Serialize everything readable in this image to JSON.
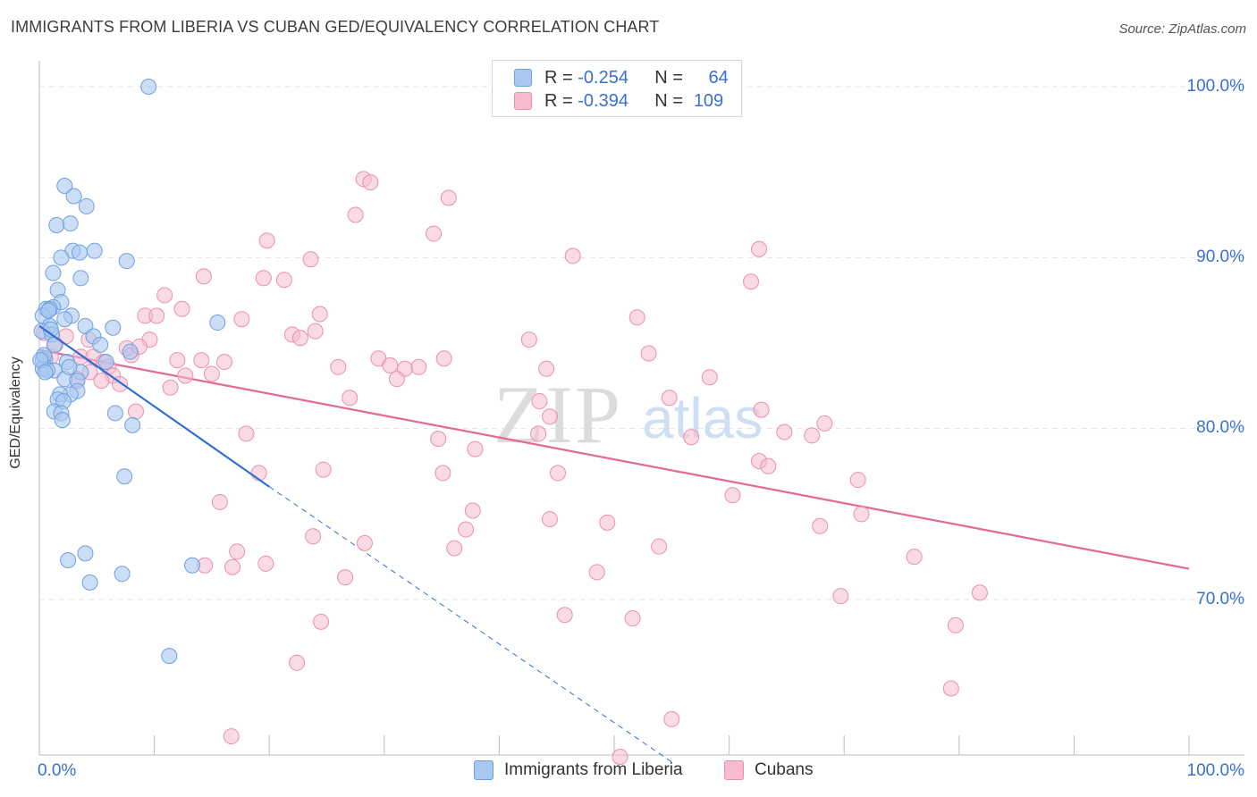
{
  "title": "IMMIGRANTS FROM LIBERIA VS CUBAN GED/EQUIVALENCY CORRELATION CHART",
  "source": "Source: ZipAtlas.com",
  "colors": {
    "blue_fill": "#a9c8f0",
    "blue_stroke": "#6f9fe0",
    "blue_line": "#2f6fd3",
    "pink_fill": "#f6bccd",
    "pink_stroke": "#ea90ad",
    "pink_line": "#e26a95",
    "tick_text": "#3a6fd0",
    "grid": "#e2e2e2"
  },
  "legend": {
    "rows": [
      {
        "r_label": "R =",
        "r_value": "-0.254",
        "n_label": "N =",
        "n_value": "64",
        "color": "#a9c8f0"
      },
      {
        "r_label": "R =",
        "r_value": "-0.394",
        "n_label": "N =",
        "n_value": "109",
        "color": "#f6bccd"
      }
    ]
  },
  "bottom_legend": [
    {
      "label": "Immigrants from Liberia",
      "color": "#a9c8f0"
    },
    {
      "label": "Cubans",
      "color": "#f6bccd"
    }
  ],
  "axes": {
    "ylabel": "GED/Equivalency",
    "x_min_label": "0.0%",
    "x_max_label": "100.0%",
    "y_ticks": [
      {
        "value": 100,
        "label": "100.0%"
      },
      {
        "value": 90,
        "label": "90.0%"
      },
      {
        "value": 80,
        "label": "80.0%"
      },
      {
        "value": 70,
        "label": "70.0%"
      }
    ]
  },
  "watermark": {
    "main": "ZIP",
    "sub": "atlas"
  },
  "chart_data": {
    "type": "scatter",
    "title": "IMMIGRANTS FROM LIBERIA VS CUBAN GED/EQUIVALENCY CORRELATION CHART",
    "xlabel": "",
    "ylabel": "GED/Equivalency",
    "xlim": [
      0,
      100
    ],
    "ylim": [
      60.5,
      101.5
    ],
    "series": [
      {
        "name": "Immigrants from Liberia",
        "r": -0.254,
        "n": 64,
        "trend": {
          "x0": 0,
          "y0": 86.0,
          "x1": 20,
          "y1": 76.6,
          "dash_to_x": 55,
          "dash_to_y": 60.5
        },
        "points": [
          [
            9.5,
            100.0
          ],
          [
            2.2,
            94.2
          ],
          [
            3.0,
            93.6
          ],
          [
            4.1,
            93.0
          ],
          [
            1.5,
            91.9
          ],
          [
            2.7,
            92.0
          ],
          [
            2.9,
            90.4
          ],
          [
            4.8,
            90.4
          ],
          [
            3.5,
            90.3
          ],
          [
            1.9,
            90.0
          ],
          [
            7.6,
            89.8
          ],
          [
            1.2,
            89.1
          ],
          [
            3.6,
            88.8
          ],
          [
            1.6,
            88.1
          ],
          [
            1.9,
            87.4
          ],
          [
            1.2,
            87.1
          ],
          [
            0.6,
            87.0
          ],
          [
            0.9,
            87.0
          ],
          [
            0.3,
            86.6
          ],
          [
            2.8,
            86.6
          ],
          [
            2.2,
            86.4
          ],
          [
            15.5,
            86.2
          ],
          [
            0.9,
            86.0
          ],
          [
            4.0,
            86.0
          ],
          [
            6.4,
            85.9
          ],
          [
            0.2,
            85.7
          ],
          [
            1.1,
            85.5
          ],
          [
            4.7,
            85.4
          ],
          [
            5.3,
            84.9
          ],
          [
            1.3,
            84.9
          ],
          [
            7.9,
            84.5
          ],
          [
            0.5,
            84.1
          ],
          [
            0.3,
            84.0
          ],
          [
            2.4,
            83.9
          ],
          [
            5.8,
            83.9
          ],
          [
            0.3,
            83.5
          ],
          [
            1.3,
            83.4
          ],
          [
            0.7,
            83.4
          ],
          [
            3.6,
            83.3
          ],
          [
            2.2,
            82.9
          ],
          [
            3.3,
            82.8
          ],
          [
            3.3,
            82.2
          ],
          [
            2.7,
            82.0
          ],
          [
            1.8,
            82.0
          ],
          [
            1.6,
            81.7
          ],
          [
            2.1,
            81.6
          ],
          [
            1.3,
            81.0
          ],
          [
            6.6,
            80.9
          ],
          [
            1.9,
            80.9
          ],
          [
            2.0,
            80.5
          ],
          [
            8.1,
            80.2
          ],
          [
            7.4,
            77.2
          ],
          [
            4.0,
            72.7
          ],
          [
            2.5,
            72.3
          ],
          [
            13.3,
            72.0
          ],
          [
            7.2,
            71.5
          ],
          [
            4.4,
            71.0
          ],
          [
            11.3,
            66.7
          ],
          [
            0.4,
            84.3
          ],
          [
            1.0,
            85.8
          ],
          [
            0.1,
            84.0
          ],
          [
            2.6,
            83.6
          ],
          [
            0.8,
            86.9
          ],
          [
            0.5,
            83.3
          ]
        ]
      },
      {
        "name": "Cubans",
        "r": -0.394,
        "n": 109,
        "trend": {
          "x0": 0,
          "y0": 84.6,
          "x1": 100,
          "y1": 71.8
        },
        "points": [
          [
            28.2,
            94.6
          ],
          [
            28.8,
            94.4
          ],
          [
            35.6,
            93.5
          ],
          [
            27.5,
            92.5
          ],
          [
            34.3,
            91.4
          ],
          [
            19.8,
            91.0
          ],
          [
            46.4,
            90.1
          ],
          [
            62.6,
            90.5
          ],
          [
            23.6,
            89.9
          ],
          [
            14.3,
            88.9
          ],
          [
            19.5,
            88.8
          ],
          [
            21.3,
            88.7
          ],
          [
            61.9,
            88.6
          ],
          [
            10.9,
            87.8
          ],
          [
            12.4,
            87.0
          ],
          [
            9.2,
            86.6
          ],
          [
            10.2,
            86.6
          ],
          [
            24.4,
            86.7
          ],
          [
            52.0,
            86.5
          ],
          [
            17.6,
            86.4
          ],
          [
            24.0,
            85.7
          ],
          [
            22.0,
            85.5
          ],
          [
            22.7,
            85.3
          ],
          [
            2.3,
            85.4
          ],
          [
            4.3,
            85.2
          ],
          [
            9.6,
            85.2
          ],
          [
            42.6,
            85.2
          ],
          [
            0.4,
            85.6
          ],
          [
            1.4,
            84.9
          ],
          [
            7.6,
            84.7
          ],
          [
            8.0,
            84.3
          ],
          [
            3.6,
            84.2
          ],
          [
            4.7,
            84.2
          ],
          [
            53.0,
            84.4
          ],
          [
            12.0,
            84.0
          ],
          [
            14.1,
            84.0
          ],
          [
            16.1,
            83.9
          ],
          [
            29.5,
            84.1
          ],
          [
            35.2,
            84.1
          ],
          [
            30.5,
            83.7
          ],
          [
            5.6,
            83.9
          ],
          [
            6.0,
            83.6
          ],
          [
            26.0,
            83.6
          ],
          [
            31.8,
            83.5
          ],
          [
            33.0,
            83.6
          ],
          [
            44.1,
            83.5
          ],
          [
            4.4,
            83.3
          ],
          [
            6.4,
            83.1
          ],
          [
            15.0,
            83.2
          ],
          [
            12.7,
            83.1
          ],
          [
            58.3,
            83.0
          ],
          [
            31.1,
            82.9
          ],
          [
            5.4,
            82.8
          ],
          [
            7.0,
            82.6
          ],
          [
            11.4,
            82.4
          ],
          [
            27.0,
            81.8
          ],
          [
            43.5,
            81.6
          ],
          [
            54.8,
            81.8
          ],
          [
            62.8,
            81.1
          ],
          [
            8.4,
            81.0
          ],
          [
            44.4,
            80.7
          ],
          [
            68.3,
            80.3
          ],
          [
            18.0,
            79.7
          ],
          [
            34.7,
            79.4
          ],
          [
            43.4,
            79.7
          ],
          [
            56.7,
            79.5
          ],
          [
            64.8,
            79.8
          ],
          [
            67.2,
            79.6
          ],
          [
            37.9,
            78.8
          ],
          [
            62.6,
            78.1
          ],
          [
            63.4,
            77.8
          ],
          [
            24.7,
            77.6
          ],
          [
            35.1,
            77.4
          ],
          [
            45.1,
            77.4
          ],
          [
            71.2,
            77.0
          ],
          [
            60.3,
            76.1
          ],
          [
            15.7,
            75.7
          ],
          [
            37.7,
            75.2
          ],
          [
            71.5,
            75.0
          ],
          [
            44.4,
            74.7
          ],
          [
            49.4,
            74.5
          ],
          [
            67.9,
            74.3
          ],
          [
            37.1,
            74.1
          ],
          [
            23.8,
            73.7
          ],
          [
            28.3,
            73.3
          ],
          [
            36.1,
            73.0
          ],
          [
            53.9,
            73.1
          ],
          [
            17.2,
            72.8
          ],
          [
            19.7,
            72.1
          ],
          [
            14.4,
            72.0
          ],
          [
            16.8,
            71.9
          ],
          [
            48.5,
            71.6
          ],
          [
            26.6,
            71.3
          ],
          [
            76.1,
            72.5
          ],
          [
            81.8,
            70.4
          ],
          [
            69.7,
            70.2
          ],
          [
            45.7,
            69.1
          ],
          [
            51.6,
            68.9
          ],
          [
            24.5,
            68.7
          ],
          [
            79.7,
            68.5
          ],
          [
            22.4,
            66.3
          ],
          [
            79.3,
            64.8
          ],
          [
            55.0,
            63.0
          ],
          [
            16.7,
            62.0
          ],
          [
            50.5,
            60.8
          ],
          [
            8.7,
            84.8
          ],
          [
            1.0,
            84.2
          ],
          [
            19.1,
            77.4
          ],
          [
            3.3,
            82.9
          ]
        ]
      }
    ]
  }
}
